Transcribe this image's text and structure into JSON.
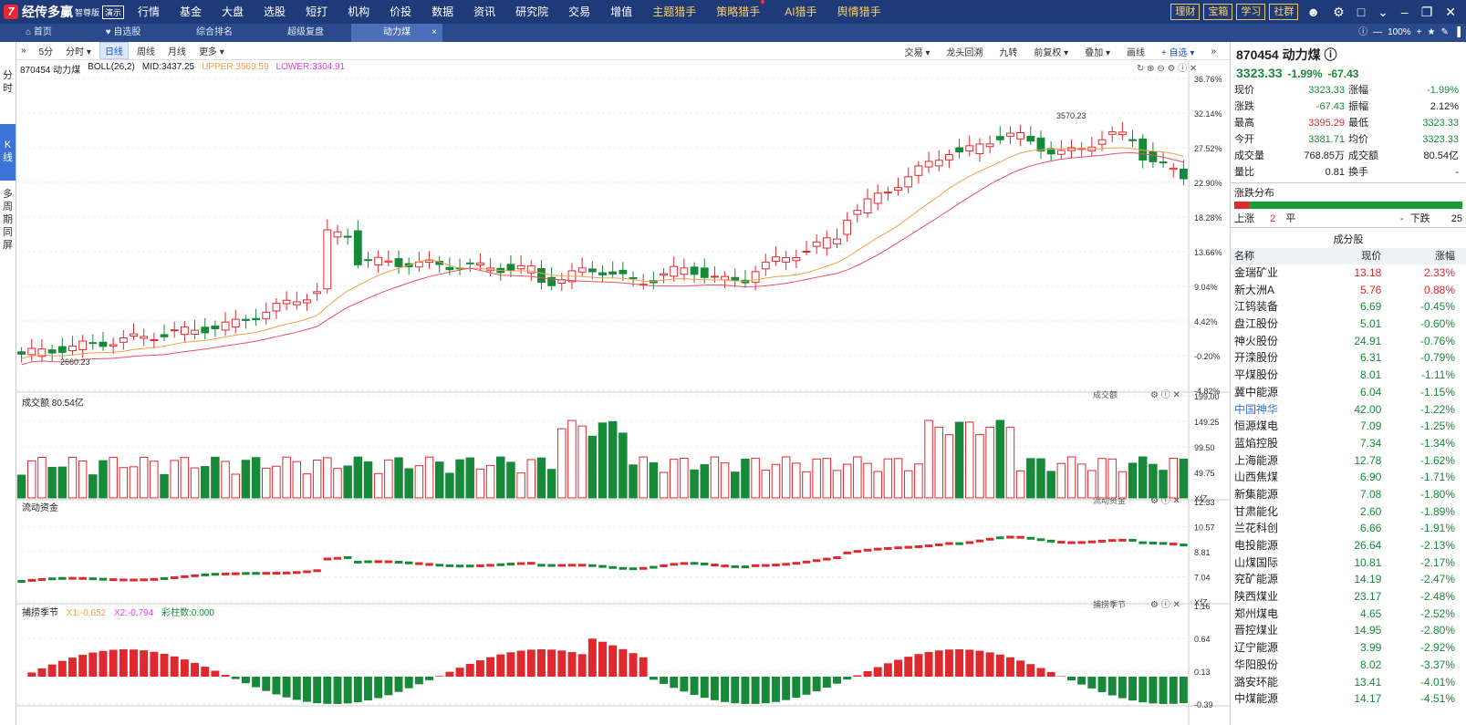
{
  "app": {
    "brand": "经传多赢",
    "edition": "智尊版",
    "demo": "演示"
  },
  "menu": [
    {
      "label": "行情"
    },
    {
      "label": "基金"
    },
    {
      "label": "大盘"
    },
    {
      "label": "选股"
    },
    {
      "label": "短打"
    },
    {
      "label": "机构"
    },
    {
      "label": "价投"
    },
    {
      "label": "数据"
    },
    {
      "label": "资讯"
    },
    {
      "label": "研究院"
    },
    {
      "label": "交易"
    },
    {
      "label": "增值"
    },
    {
      "label": "主题猎手",
      "hl": true
    },
    {
      "label": "策略猎手",
      "hl": true,
      "dot": true
    },
    {
      "label": "AI猎手",
      "hl": true
    },
    {
      "label": "舆情猎手",
      "hl": true
    }
  ],
  "topright": [
    "理财",
    "宝箱",
    "学习",
    "社群"
  ],
  "tabs": [
    {
      "label": "首页",
      "icon": "home-icon"
    },
    {
      "label": "自选股",
      "icon": "heart-icon"
    },
    {
      "label": "综合排名"
    },
    {
      "label": "超级复盘"
    },
    {
      "label": "动力煤",
      "active": true
    }
  ],
  "zoom": "100%",
  "left_tabs": [
    "分时",
    "K线",
    "多周期同屏"
  ],
  "periods": [
    "5分",
    "分时",
    "日线",
    "周线",
    "月线",
    "更多"
  ],
  "tools": [
    "交易",
    "龙头回溯",
    "九转",
    "前复权",
    "叠加",
    "画线",
    "自选"
  ],
  "stock_name": "870454 动力煤",
  "boll": {
    "label": "BOLL(26,2)",
    "mid": "MID:3437.25",
    "upper": "UPPER:3569.59",
    "lower": "LOWER:3304.91"
  },
  "price_axis": [
    "36.76%",
    "32.14%",
    "27.52%",
    "22.90%",
    "18.28%",
    "13.66%",
    "9.04%",
    "4.42%",
    "-0.20%",
    "-4.82%"
  ],
  "vol_axis": [
    "199.00",
    "149.25",
    "99.50",
    "49.75",
    "X亿"
  ],
  "flow_axis": [
    "12.33",
    "10.57",
    "8.81",
    "7.04",
    "X亿"
  ],
  "osc_axis": [
    "1.16",
    "0.64",
    "0.13",
    "-0.39"
  ],
  "hi_label": "3570.23",
  "lo_label": "2660.23",
  "vol_title": "成交额",
  "vol_value": "80.54亿",
  "flow_title": "流动资金",
  "osc": {
    "title": "捕捞季节",
    "x1": "X1:-0.652",
    "x2": "X2:-0.794",
    "bars": "彩柱数:0.000"
  },
  "panel_labels": {
    "vol": "成交额",
    "flow": "流动资金",
    "osc": "捕捞季节"
  },
  "quote": {
    "title": "870454 动力煤",
    "price": "3323.33",
    "chg_pct": "-1.99%",
    "chg": "-67.43",
    "rows": [
      [
        "现价",
        "3323.33",
        "g",
        "涨幅",
        "-1.99%",
        "g"
      ],
      [
        "涨跌",
        "-67.43",
        "g",
        "振幅",
        "2.12%",
        ""
      ],
      [
        "最高",
        "3395.29",
        "r",
        "最低",
        "3323.33",
        "g"
      ],
      [
        "今开",
        "3381.71",
        "g",
        "均价",
        "3323.33",
        "g"
      ],
      [
        "成交量",
        "768.85万",
        "",
        "成交额",
        "80.54亿",
        ""
      ],
      [
        "量比",
        "0.81",
        "",
        "换手",
        "-",
        ""
      ]
    ]
  },
  "dist": {
    "title": "涨跌分布",
    "up_label": "上涨",
    "up": "2",
    "flat_label": "平",
    "flat": "-",
    "down_label": "下跌",
    "down": "25"
  },
  "components": {
    "title": "成分股",
    "headers": [
      "名称",
      "现价",
      "涨幅"
    ],
    "rows": [
      [
        "金瑞矿业",
        "13.18",
        "2.33%",
        "r"
      ],
      [
        "新大洲A",
        "5.76",
        "0.88%",
        "r"
      ],
      [
        "江钨装备",
        "6.69",
        "-0.45%",
        "g"
      ],
      [
        "盘江股份",
        "5.01",
        "-0.60%",
        "g"
      ],
      [
        "神火股份",
        "24.91",
        "-0.76%",
        "g"
      ],
      [
        "开滦股份",
        "6.31",
        "-0.79%",
        "g"
      ],
      [
        "平煤股份",
        "8.01",
        "-1.11%",
        "g"
      ],
      [
        "冀中能源",
        "6.04",
        "-1.15%",
        "g"
      ],
      [
        "中国神华",
        "42.00",
        "-1.22%",
        "b"
      ],
      [
        "恒源煤电",
        "7.09",
        "-1.25%",
        "g"
      ],
      [
        "蓝焰控股",
        "7.34",
        "-1.34%",
        "g"
      ],
      [
        "上海能源",
        "12.78",
        "-1.62%",
        "g"
      ],
      [
        "山西焦煤",
        "6.90",
        "-1.71%",
        "g"
      ],
      [
        "新集能源",
        "7.08",
        "-1.80%",
        "g"
      ],
      [
        "甘肃能化",
        "2.60",
        "-1.89%",
        "g"
      ],
      [
        "兰花科创",
        "6.66",
        "-1.91%",
        "g"
      ],
      [
        "电投能源",
        "26.64",
        "-2.13%",
        "g"
      ],
      [
        "山煤国际",
        "10.81",
        "-2.17%",
        "g"
      ],
      [
        "兖矿能源",
        "14.19",
        "-2.47%",
        "g"
      ],
      [
        "陕西煤业",
        "23.17",
        "-2.48%",
        "g"
      ],
      [
        "郑州煤电",
        "4.65",
        "-2.52%",
        "g"
      ],
      [
        "晋控煤业",
        "14.95",
        "-2.80%",
        "g"
      ],
      [
        "辽宁能源",
        "3.99",
        "-2.92%",
        "g"
      ],
      [
        "华阳股份",
        "8.02",
        "-3.37%",
        "g"
      ],
      [
        "潞安环能",
        "13.41",
        "-4.01%",
        "g"
      ],
      [
        "中煤能源",
        "14.17",
        "-4.51%",
        "g"
      ]
    ]
  },
  "colors": {
    "up": "#e0292f",
    "down": "#178a3a",
    "ma_mid": "#f0a04a",
    "ma_low": "#e8506a"
  }
}
